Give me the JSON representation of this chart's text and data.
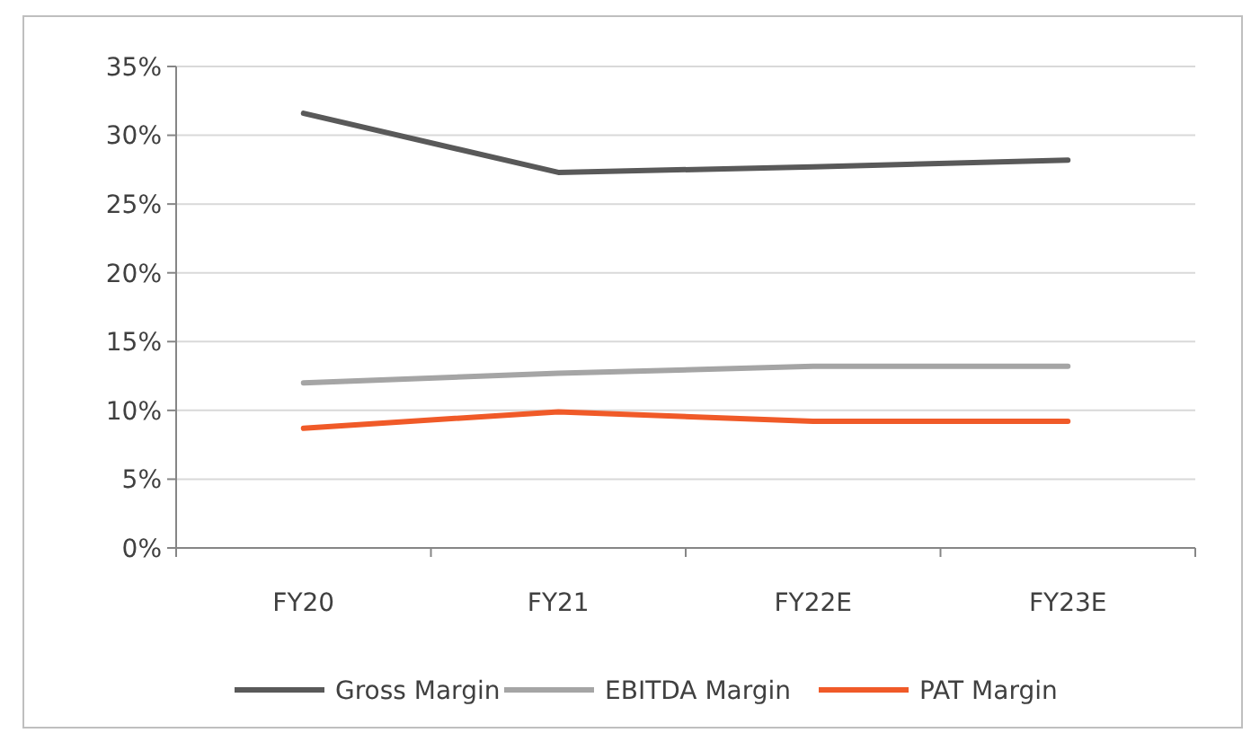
{
  "chart_data": {
    "type": "line",
    "categories": [
      "FY20",
      "FY21",
      "FY22E",
      "FY23E"
    ],
    "series": [
      {
        "name": "Gross Margin",
        "color": "#595959",
        "values": [
          31.6,
          27.3,
          27.7,
          28.2
        ]
      },
      {
        "name": "EBITDA Margin",
        "color": "#a5a5a5",
        "values": [
          12.0,
          12.7,
          13.2,
          13.2
        ]
      },
      {
        "name": "PAT Margin",
        "color": "#f05a28",
        "values": [
          8.7,
          9.9,
          9.2,
          9.2
        ]
      }
    ],
    "ylim": [
      0,
      35
    ],
    "yticks": [
      {
        "value": 0,
        "label": "0%"
      },
      {
        "value": 5,
        "label": "5%"
      },
      {
        "value": 10,
        "label": "10%"
      },
      {
        "value": 15,
        "label": "15%"
      },
      {
        "value": 20,
        "label": "20%"
      },
      {
        "value": 25,
        "label": "25%"
      },
      {
        "value": 30,
        "label": "30%"
      },
      {
        "value": 35,
        "label": "35%"
      }
    ],
    "grid": "y",
    "legend": "bottom",
    "marker": "none",
    "line_style": "solid"
  }
}
